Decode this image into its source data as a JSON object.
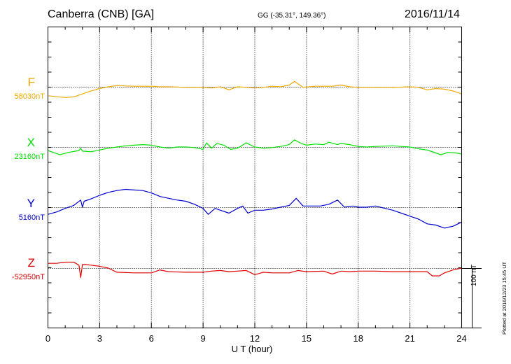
{
  "header": {
    "station": "Canberra (CNB)  [GA]",
    "coords": "GG (-35.31°, 149.36°)",
    "date": "2016/11/14"
  },
  "footer": {
    "xlabel": "U T (hour)",
    "scale_label": "100 nT",
    "plotted": "Plotted at 2016/12/23 15:45 UT"
  },
  "chart_data": {
    "type": "line",
    "title": "Canberra (CNB)  [GA]",
    "xlabel": "U T (hour)",
    "ylabel": "",
    "xlim": [
      0,
      24
    ],
    "x_ticks": [
      0,
      3,
      6,
      9,
      12,
      15,
      18,
      21,
      24
    ],
    "grid": "dotted",
    "scale_bar_nT": 100,
    "series": [
      {
        "name": "F",
        "base_label": "58030nT",
        "base": 58030,
        "color": "#f0a800",
        "x": [
          0,
          1,
          1.5,
          2,
          2.5,
          3,
          3.5,
          4,
          5,
          6,
          6.5,
          7,
          8,
          9,
          9.5,
          10,
          10.5,
          11,
          11.5,
          12,
          12.5,
          13,
          13.5,
          14,
          14.3,
          14.8,
          15.5,
          16.5,
          17,
          17.5,
          18,
          19,
          20,
          21,
          21.5,
          22,
          22.5,
          23,
          23.5,
          24
        ],
        "y": [
          58015,
          58012,
          58013,
          58018,
          58023,
          58027,
          58030,
          58032,
          58031,
          58031,
          58030,
          58030,
          58029,
          58029,
          58028,
          58030,
          58025,
          58030,
          58029,
          58028,
          58029,
          58031,
          58030,
          58033,
          58039,
          58029,
          58031,
          58031,
          58033,
          58030,
          58029,
          58029,
          58029,
          58030,
          58029,
          58025,
          58027,
          58026,
          58023,
          58018
        ]
      },
      {
        "name": "X",
        "base_label": "23160nT",
        "base": 23160,
        "color": "#00e000",
        "x": [
          0,
          0.7,
          1.2,
          1.8,
          1.9,
          2,
          2.5,
          3,
          3.5,
          4,
          4.5,
          5,
          5.5,
          6,
          6.5,
          7,
          7.5,
          8,
          8.5,
          9,
          9.2,
          9.5,
          9.8,
          10.2,
          10.6,
          11,
          11.5,
          12,
          12.5,
          13,
          13.5,
          14,
          14.3,
          14.7,
          15,
          15.5,
          16,
          16.3,
          16.8,
          17,
          17.5,
          18,
          18.5,
          19,
          20,
          20.5,
          21,
          21.5,
          22,
          22.5,
          22.8,
          23.2,
          23.7,
          24
        ],
        "y": [
          23154,
          23147,
          23151,
          23154,
          23158,
          23153,
          23152,
          23155,
          23158,
          23160,
          23162,
          23163,
          23164,
          23163,
          23160,
          23158,
          23160,
          23160,
          23159,
          23156,
          23167,
          23158,
          23166,
          23163,
          23156,
          23158,
          23167,
          23160,
          23158,
          23159,
          23161,
          23164,
          23172,
          23166,
          23163,
          23165,
          23164,
          23168,
          23164,
          23166,
          23164,
          23161,
          23160,
          23161,
          23162,
          23161,
          23160,
          23157,
          23155,
          23150,
          23147,
          23151,
          23150,
          23148
        ]
      },
      {
        "name": "Y",
        "base_label": "5160nT",
        "base": 5160,
        "color": "#0000d0",
        "x": [
          0,
          0.5,
          1,
          1.5,
          1.9,
          2,
          2.1,
          2.5,
          3,
          3.5,
          4,
          4.5,
          5,
          5.5,
          6,
          6.5,
          7,
          7.5,
          8,
          8.5,
          9,
          9.3,
          9.7,
          10,
          10.5,
          11,
          11.3,
          11.6,
          12,
          12.5,
          13,
          13.5,
          14,
          14.4,
          14.8,
          15.2,
          15.8,
          16.3,
          16.8,
          17.2,
          17.7,
          18,
          18.5,
          19,
          20,
          20.5,
          21,
          21.5,
          22,
          22.5,
          23,
          23.5,
          24
        ],
        "y": [
          5148,
          5152,
          5158,
          5163,
          5172,
          5160,
          5170,
          5174,
          5180,
          5185,
          5188,
          5190,
          5189,
          5188,
          5184,
          5178,
          5175,
          5172,
          5170,
          5165,
          5158,
          5148,
          5158,
          5155,
          5150,
          5158,
          5162,
          5150,
          5155,
          5155,
          5157,
          5160,
          5163,
          5175,
          5162,
          5162,
          5162,
          5165,
          5172,
          5160,
          5162,
          5160,
          5160,
          5162,
          5155,
          5150,
          5145,
          5140,
          5132,
          5130,
          5125,
          5128,
          5135
        ]
      },
      {
        "name": "Z",
        "base_label": "-52950nT",
        "base": -52950,
        "color": "#e00000",
        "x": [
          0,
          0.5,
          1,
          1.5,
          1.8,
          1.9,
          2,
          2.2,
          2.5,
          3,
          3.5,
          4,
          5,
          6,
          6.5,
          7,
          8,
          9,
          9.5,
          10,
          10.5,
          11,
          11.5,
          12,
          12.5,
          13,
          14,
          14.5,
          15,
          16,
          16.5,
          17,
          17.5,
          18,
          19,
          20,
          21,
          22,
          22.3,
          22.7,
          23,
          23.5,
          24
        ],
        "y": [
          -52942,
          -52942,
          -52940,
          -52940,
          -52945,
          -52966,
          -52944,
          -52944,
          -52945,
          -52947,
          -52950,
          -52957,
          -52958,
          -52958,
          -52953,
          -52956,
          -52957,
          -52957,
          -52955,
          -52954,
          -52956,
          -52955,
          -52954,
          -52961,
          -52957,
          -52958,
          -52958,
          -52954,
          -52956,
          -52955,
          -52960,
          -52955,
          -52956,
          -52955,
          -52955,
          -52956,
          -52956,
          -52956,
          -52963,
          -52963,
          -52958,
          -52953,
          -52950
        ]
      }
    ]
  }
}
